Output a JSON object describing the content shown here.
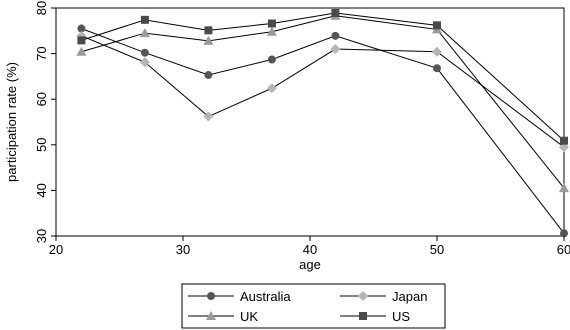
{
  "chart_data": {
    "type": "line",
    "xlabel": "age",
    "ylabel": "participation rate  (%)",
    "x": [
      22,
      27,
      32,
      37,
      42,
      50,
      60
    ],
    "xlim": [
      20,
      60
    ],
    "ylim": [
      30,
      80
    ],
    "xticks": [
      20,
      30,
      40,
      50,
      60
    ],
    "yticks": [
      30,
      40,
      50,
      60,
      70,
      80
    ],
    "grid": false,
    "legend_position": "bottom",
    "series": [
      {
        "name": "Australia",
        "marker": "circle",
        "color": "#555555",
        "values": [
          75.5,
          70.2,
          65.3,
          68.7,
          73.9,
          66.8,
          30.6
        ]
      },
      {
        "name": "Japan",
        "marker": "diamond",
        "color": "#b5b5b5",
        "values": [
          73.9,
          68.1,
          56.2,
          62.4,
          71.0,
          70.4,
          49.5
        ]
      },
      {
        "name": "UK",
        "marker": "triangle",
        "color": "#9a9a9a",
        "values": [
          70.4,
          74.5,
          72.8,
          74.8,
          78.3,
          75.3,
          40.5
        ]
      },
      {
        "name": "US",
        "marker": "square",
        "color": "#4a4a4a",
        "values": [
          72.9,
          77.4,
          75.1,
          76.6,
          78.9,
          76.2,
          50.9
        ]
      }
    ]
  }
}
